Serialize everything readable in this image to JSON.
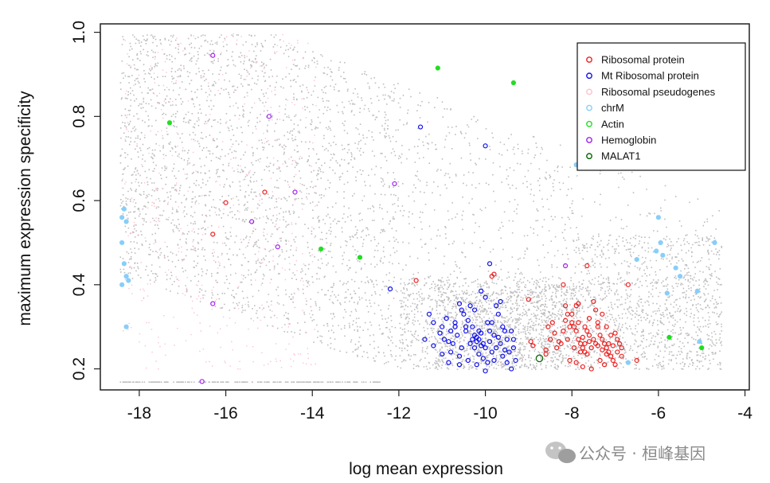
{
  "watermark": {
    "text": "公众号 · 桓峰基因",
    "icon": "wechat-icon"
  },
  "chart_data": {
    "type": "scatter",
    "title": "",
    "xlabel": "log mean expression",
    "ylabel": "maximum expression specificity",
    "xlim": [
      -18.9,
      -3.9
    ],
    "ylim": [
      0.15,
      1.02
    ],
    "x_ticks": [
      -18,
      -16,
      -14,
      -12,
      -10,
      -8,
      -6,
      -4
    ],
    "y_ticks": [
      0.2,
      0.4,
      0.6,
      0.8,
      1.0
    ],
    "grid": false,
    "legend_position": "top-right",
    "background_color": "#bebebe",
    "legend": [
      {
        "name": "Ribosomal protein",
        "color": "#ee2020"
      },
      {
        "name": "Mt Ribosomal protein",
        "color": "#1010ee"
      },
      {
        "name": "Ribosomal pseudogenes",
        "color": "#ffc0cb"
      },
      {
        "name": "chrM",
        "color": "#87cefa"
      },
      {
        "name": "Actin",
        "color": "#22dd22"
      },
      {
        "name": "Hemoglobin",
        "color": "#a020f0"
      },
      {
        "name": "MALAT1",
        "color": "#006400"
      }
    ],
    "series": [
      {
        "name": "Ribosomal protein",
        "color": "#ee2020",
        "points": [
          [
            -16.3,
            0.52
          ],
          [
            -16.0,
            0.595
          ],
          [
            -15.1,
            0.62
          ],
          [
            -11.6,
            0.41
          ],
          [
            -9.8,
            0.425
          ],
          [
            -9.85,
            0.42
          ],
          [
            -9.0,
            0.365
          ],
          [
            -8.95,
            0.265
          ],
          [
            -8.9,
            0.255
          ],
          [
            -8.6,
            0.235
          ],
          [
            -8.55,
            0.3
          ],
          [
            -8.45,
            0.31
          ],
          [
            -8.4,
            0.285
          ],
          [
            -8.3,
            0.265
          ],
          [
            -8.2,
            0.4
          ],
          [
            -8.15,
            0.35
          ],
          [
            -8.1,
            0.33
          ],
          [
            -8.0,
            0.31
          ],
          [
            -7.95,
            0.3
          ],
          [
            -7.9,
            0.29
          ],
          [
            -7.85,
            0.27
          ],
          [
            -7.8,
            0.26
          ],
          [
            -7.75,
            0.25
          ],
          [
            -7.7,
            0.24
          ],
          [
            -7.65,
            0.445
          ],
          [
            -7.6,
            0.32
          ],
          [
            -7.5,
            0.36
          ],
          [
            -7.45,
            0.34
          ],
          [
            -7.4,
            0.31
          ],
          [
            -7.35,
            0.28
          ],
          [
            -7.3,
            0.27
          ],
          [
            -7.25,
            0.26
          ],
          [
            -7.2,
            0.25
          ],
          [
            -7.15,
            0.24
          ],
          [
            -7.1,
            0.23
          ],
          [
            -7.05,
            0.22
          ],
          [
            -7.0,
            0.21
          ],
          [
            -6.95,
            0.27
          ],
          [
            -6.9,
            0.26
          ],
          [
            -6.85,
            0.23
          ],
          [
            -6.7,
            0.4
          ],
          [
            -6.5,
            0.22
          ],
          [
            -7.55,
            0.2
          ],
          [
            -7.75,
            0.205
          ],
          [
            -8.05,
            0.22
          ],
          [
            -8.0,
            0.33
          ],
          [
            -7.9,
            0.35
          ],
          [
            -7.85,
            0.355
          ],
          [
            -7.7,
            0.3
          ],
          [
            -7.6,
            0.28
          ],
          [
            -7.5,
            0.27
          ],
          [
            -7.4,
            0.3
          ],
          [
            -7.3,
            0.33
          ],
          [
            -7.2,
            0.3
          ],
          [
            -7.1,
            0.28
          ],
          [
            -7.0,
            0.285
          ],
          [
            -7.95,
            0.25
          ],
          [
            -7.8,
            0.24
          ],
          [
            -7.65,
            0.235
          ],
          [
            -7.55,
            0.25
          ],
          [
            -7.45,
            0.26
          ],
          [
            -7.35,
            0.22
          ],
          [
            -7.25,
            0.21
          ],
          [
            -7.15,
            0.26
          ],
          [
            -8.25,
            0.26
          ],
          [
            -8.35,
            0.25
          ],
          [
            -8.2,
            0.29
          ],
          [
            -8.1,
            0.27
          ],
          [
            -7.9,
            0.215
          ],
          [
            -7.7,
            0.26
          ],
          [
            -7.6,
            0.265
          ],
          [
            -7.4,
            0.255
          ],
          [
            -7.3,
            0.245
          ],
          [
            -7.2,
            0.235
          ],
          [
            -7.05,
            0.255
          ],
          [
            -6.85,
            0.25
          ],
          [
            -6.95,
            0.24
          ],
          [
            -7.75,
            0.275
          ],
          [
            -7.65,
            0.29
          ],
          [
            -7.85,
            0.31
          ],
          [
            -8.05,
            0.3
          ],
          [
            -8.15,
            0.315
          ],
          [
            -8.5,
            0.27
          ],
          [
            -8.6,
            0.245
          ]
        ]
      },
      {
        "name": "Mt Ribosomal protein",
        "color": "#1010ee",
        "points": [
          [
            -12.2,
            0.39
          ],
          [
            -11.5,
            0.775
          ],
          [
            -10.0,
            0.73
          ],
          [
            -9.9,
            0.45
          ],
          [
            -10.1,
            0.385
          ],
          [
            -10.0,
            0.37
          ],
          [
            -10.6,
            0.355
          ],
          [
            -11.3,
            0.33
          ],
          [
            -11.2,
            0.31
          ],
          [
            -11.0,
            0.3
          ],
          [
            -10.9,
            0.32
          ],
          [
            -10.8,
            0.29
          ],
          [
            -10.7,
            0.31
          ],
          [
            -10.5,
            0.33
          ],
          [
            -10.4,
            0.315
          ],
          [
            -10.3,
            0.3
          ],
          [
            -10.25,
            0.28
          ],
          [
            -10.2,
            0.275
          ],
          [
            -10.15,
            0.27
          ],
          [
            -10.1,
            0.285
          ],
          [
            -10.05,
            0.26
          ],
          [
            -10.0,
            0.25
          ],
          [
            -9.95,
            0.31
          ],
          [
            -9.9,
            0.29
          ],
          [
            -9.8,
            0.28
          ],
          [
            -9.7,
            0.33
          ],
          [
            -9.6,
            0.3
          ],
          [
            -9.5,
            0.27
          ],
          [
            -9.4,
            0.29
          ],
          [
            -9.35,
            0.25
          ],
          [
            -9.3,
            0.22
          ],
          [
            -9.4,
            0.2
          ],
          [
            -9.6,
            0.23
          ],
          [
            -9.8,
            0.22
          ],
          [
            -10.0,
            0.195
          ],
          [
            -10.2,
            0.21
          ],
          [
            -10.4,
            0.22
          ],
          [
            -10.6,
            0.23
          ],
          [
            -10.8,
            0.24
          ],
          [
            -11.0,
            0.235
          ],
          [
            -11.2,
            0.255
          ],
          [
            -11.4,
            0.27
          ],
          [
            -10.95,
            0.27
          ],
          [
            -10.75,
            0.26
          ],
          [
            -10.55,
            0.25
          ],
          [
            -10.35,
            0.26
          ],
          [
            -10.25,
            0.25
          ],
          [
            -10.15,
            0.235
          ],
          [
            -9.85,
            0.24
          ],
          [
            -9.75,
            0.25
          ],
          [
            -9.65,
            0.26
          ],
          [
            -9.55,
            0.245
          ],
          [
            -9.45,
            0.24
          ],
          [
            -10.45,
            0.29
          ],
          [
            -10.65,
            0.28
          ],
          [
            -10.85,
            0.265
          ],
          [
            -11.05,
            0.285
          ],
          [
            -9.65,
            0.36
          ],
          [
            -9.75,
            0.35
          ],
          [
            -10.25,
            0.34
          ],
          [
            -10.35,
            0.35
          ],
          [
            -10.55,
            0.34
          ],
          [
            -10.2,
            0.265
          ],
          [
            -10.1,
            0.255
          ],
          [
            -10.3,
            0.27
          ],
          [
            -10.15,
            0.29
          ],
          [
            -9.9,
            0.265
          ],
          [
            -9.7,
            0.275
          ],
          [
            -9.95,
            0.215
          ],
          [
            -10.05,
            0.225
          ],
          [
            -10.6,
            0.21
          ],
          [
            -10.85,
            0.215
          ],
          [
            -9.5,
            0.215
          ],
          [
            -9.55,
            0.29
          ],
          [
            -9.35,
            0.27
          ],
          [
            -10.45,
            0.3
          ],
          [
            -10.7,
            0.3
          ],
          [
            -9.85,
            0.31
          ]
        ]
      },
      {
        "name": "chrM",
        "color": "#87cefa",
        "points": [
          [
            -18.4,
            0.56
          ],
          [
            -18.35,
            0.58
          ],
          [
            -18.3,
            0.55
          ],
          [
            -18.4,
            0.5
          ],
          [
            -18.35,
            0.45
          ],
          [
            -18.3,
            0.42
          ],
          [
            -18.25,
            0.41
          ],
          [
            -18.4,
            0.4
          ],
          [
            -18.3,
            0.3
          ],
          [
            -6.0,
            0.56
          ],
          [
            -5.95,
            0.5
          ],
          [
            -5.9,
            0.47
          ],
          [
            -6.05,
            0.48
          ],
          [
            -5.6,
            0.44
          ],
          [
            -5.5,
            0.42
          ],
          [
            -4.7,
            0.5
          ],
          [
            -5.1,
            0.385
          ],
          [
            -5.8,
            0.38
          ],
          [
            -6.5,
            0.46
          ],
          [
            -7.9,
            0.685
          ],
          [
            -6.7,
            0.215
          ],
          [
            -5.05,
            0.265
          ]
        ]
      },
      {
        "name": "Actin",
        "color": "#22dd22",
        "points": [
          [
            -17.3,
            0.785
          ],
          [
            -13.8,
            0.485
          ],
          [
            -12.9,
            0.465
          ],
          [
            -11.1,
            0.915
          ],
          [
            -9.35,
            0.88
          ],
          [
            -5.75,
            0.275
          ],
          [
            -5.0,
            0.25
          ]
        ]
      },
      {
        "name": "Hemoglobin",
        "color": "#a020f0",
        "points": [
          [
            -16.3,
            0.945
          ],
          [
            -15.0,
            0.8
          ],
          [
            -14.4,
            0.62
          ],
          [
            -15.4,
            0.55
          ],
          [
            -14.8,
            0.49
          ],
          [
            -12.1,
            0.64
          ],
          [
            -16.3,
            0.355
          ],
          [
            -16.55,
            0.17
          ],
          [
            -8.15,
            0.445
          ]
        ]
      },
      {
        "name": "MALAT1",
        "color": "#006400",
        "points": [
          [
            -8.75,
            0.225
          ]
        ]
      }
    ]
  }
}
